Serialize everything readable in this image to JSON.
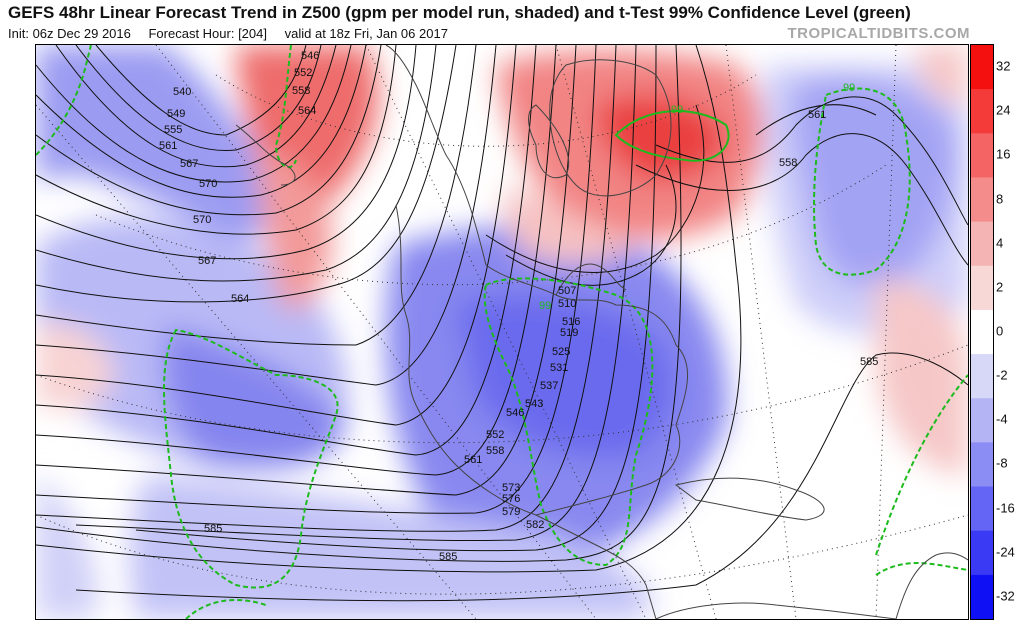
{
  "header": {
    "title": "GEFS 48hr Linear Forecast Trend in Z500 (gpm per model run, shaded) and t-Test 99% Confidence Level (green)",
    "init": "Init: 06z Dec 29 2016",
    "forecast_hour": "Forecast Hour: [204]",
    "valid": "valid at 18z Fri, Jan 06 2017",
    "brand": "TROPICALTIDBITS.COM"
  },
  "colorbar": {
    "labels": [
      "32",
      "24",
      "16",
      "8",
      "4",
      "2",
      "0",
      "-2",
      "-4",
      "-8",
      "-16",
      "-24",
      "-32"
    ],
    "colors": [
      "#f51010",
      "#f53a3a",
      "#f56464",
      "#f58c8c",
      "#f5b4b4",
      "#f8d7d7",
      "#ffffff",
      "#d7d7f8",
      "#b4b4f5",
      "#8c8cf5",
      "#6464f5",
      "#3a3af5",
      "#1010f5"
    ]
  },
  "map": {
    "significance_label": "99",
    "height_labels": [
      "546",
      "552",
      "558",
      "564",
      "540",
      "549",
      "555",
      "561",
      "567",
      "570",
      "570",
      "567",
      "564",
      "561",
      "558",
      "507",
      "510",
      "516",
      "519",
      "525",
      "531",
      "537",
      "543",
      "546",
      "552",
      "558",
      "561",
      "573",
      "576",
      "579",
      "582",
      "585",
      "585",
      "585"
    ]
  }
}
